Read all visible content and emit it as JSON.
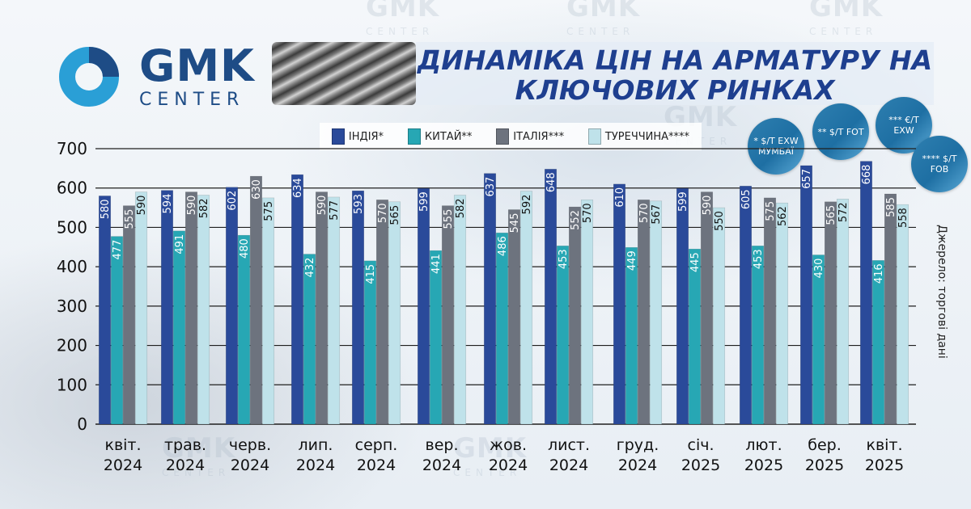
{
  "header": {
    "logo_main": "GMK",
    "logo_sub": "CENTER",
    "title_line1": "ДИНАМІКА ЦІН НА АРМАТУРУ НА",
    "title_line2": "КЛЮЧОВИХ РИНКАХ"
  },
  "badges": [
    {
      "label": "* $/Т EXW МУМБАЇ"
    },
    {
      "label": "** $/Т FOT"
    },
    {
      "label": "*** €/Т EXW"
    },
    {
      "label": "**** $/Т FOB"
    }
  ],
  "source_note": "Джерело: торгові дані",
  "colors": {
    "india": "#2a4a9a",
    "china": "#27a7b4",
    "italy": "#6d737e",
    "turkey": "#bfe2ea",
    "grid": "#1f1f1f",
    "axis_text": "#111111",
    "title": "#1e3f8f",
    "logo": "#1e4c86"
  },
  "chart_data": {
    "type": "bar",
    "ylim": [
      0,
      700
    ],
    "yticks": [
      0,
      100,
      200,
      300,
      400,
      500,
      600,
      700
    ],
    "grid": true,
    "legend_position": "top",
    "categories": [
      [
        "квіт.",
        "2024"
      ],
      [
        "трав.",
        "2024"
      ],
      [
        "черв.",
        "2024"
      ],
      [
        "лип.",
        "2024"
      ],
      [
        "серп.",
        "2024"
      ],
      [
        "вер.",
        "2024"
      ],
      [
        "жов.",
        "2024"
      ],
      [
        "лист.",
        "2024"
      ],
      [
        "груд.",
        "2024"
      ],
      [
        "січ.",
        "2025"
      ],
      [
        "лют.",
        "2025"
      ],
      [
        "бер.",
        "2025"
      ],
      [
        "квіт.",
        "2025"
      ]
    ],
    "series": [
      {
        "name": "ІНДІЯ*",
        "color_key": "india",
        "values": [
          580,
          594,
          602,
          634,
          593,
          599,
          637,
          648,
          610,
          599,
          605,
          657,
          668
        ]
      },
      {
        "name": "КИТАЙ**",
        "color_key": "china",
        "values": [
          477,
          491,
          480,
          432,
          415,
          441,
          486,
          453,
          449,
          445,
          453,
          430,
          416
        ]
      },
      {
        "name": "ІТАЛІЯ***",
        "color_key": "italy",
        "values": [
          555,
          590,
          630,
          590,
          570,
          555,
          545,
          552,
          570,
          590,
          575,
          565,
          585
        ]
      },
      {
        "name": "ТУРЕЧЧИНА****",
        "color_key": "turkey",
        "values": [
          590,
          582,
          575,
          577,
          565,
          582,
          592,
          570,
          567,
          550,
          562,
          572,
          558
        ]
      }
    ]
  }
}
